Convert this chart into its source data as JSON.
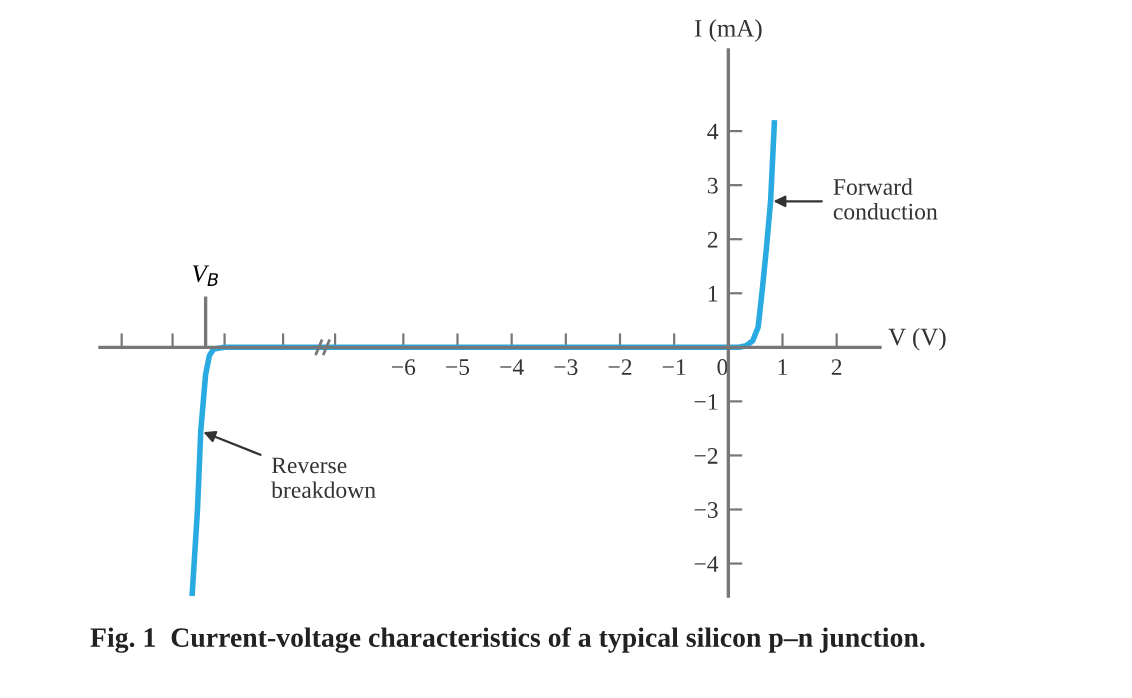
{
  "chart_data": {
    "type": "line",
    "title": "Fig. 1  Current-voltage characteristics of a typical silicon p–n junction.",
    "xlabel": "V (V)",
    "ylabel": "I (mA)",
    "series": [
      {
        "color": "#29abe2",
        "x": [
          -9.9,
          -9.8,
          -9.74,
          -9.65,
          -9.58,
          -9.5,
          -9.3,
          -8,
          -6,
          -4,
          -2,
          0,
          0.2,
          0.33,
          0.45,
          0.55,
          0.62,
          0.7,
          0.78,
          0.85
        ],
        "values": [
          -4.6,
          -3.0,
          -1.55,
          -0.5,
          -0.15,
          -0.03,
          0,
          0,
          0,
          0,
          0,
          0,
          0,
          0.03,
          0.12,
          0.37,
          1.0,
          1.8,
          2.7,
          4.15
        ]
      }
    ],
    "xlim": [
      -11.6,
      2.8
    ],
    "ylim": [
      -4.6,
      5.5
    ],
    "xticks": [
      {
        "value": -11.2,
        "label": null
      },
      {
        "value": -10.26,
        "label": null
      },
      {
        "value": -9.3,
        "label": null
      },
      {
        "value": -8.22,
        "label": null
      },
      {
        "value": -7.26,
        "label": null
      },
      {
        "value": -6,
        "label": "−6"
      },
      {
        "value": -5,
        "label": "−5"
      },
      {
        "value": -4,
        "label": "−4"
      },
      {
        "value": -3,
        "label": "−3"
      },
      {
        "value": -2,
        "label": "−2"
      },
      {
        "value": -1,
        "label": "−1"
      },
      {
        "value": 0,
        "label": "0"
      },
      1,
      2
    ],
    "yticks": [
      {
        "value": -4,
        "label": "−4"
      },
      {
        "value": -3,
        "label": "−3"
      },
      {
        "value": -2,
        "label": "−2"
      },
      {
        "value": -1,
        "label": "−1"
      },
      1,
      2,
      3,
      4
    ],
    "ref_lines": [
      {
        "axis": "x",
        "value": -9.65,
        "label": "V$_{B}$"
      }
    ],
    "annotations": [
      {
        "text": "Forward\nconduction",
        "x": 0.78,
        "y": 2.7
      },
      {
        "text": "Reverse\nbreakdown",
        "x": -9.74,
        "y": -1.55
      }
    ],
    "grid": false,
    "marker": "none",
    "line_style": "solid"
  }
}
